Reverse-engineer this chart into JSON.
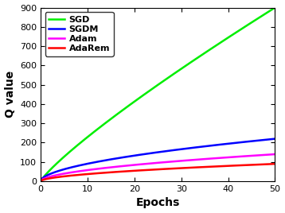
{
  "title": "",
  "xlabel": "Epochs",
  "ylabel": "Q value",
  "xlim": [
    0,
    50
  ],
  "ylim": [
    0,
    900
  ],
  "yticks": [
    0,
    100,
    200,
    300,
    400,
    500,
    600,
    700,
    800,
    900
  ],
  "xticks": [
    0,
    10,
    20,
    30,
    40,
    50
  ],
  "series": [
    {
      "label": "SGD",
      "color": "#00ee00",
      "growth": "sgd"
    },
    {
      "label": "SGDM",
      "color": "#0000ff",
      "growth": "sgdm"
    },
    {
      "label": "Adam",
      "color": "#ff00ff",
      "growth": "adam"
    },
    {
      "label": "AdaRem",
      "color": "#ff0000",
      "growth": "adarem"
    }
  ],
  "legend_loc": "upper left",
  "background_color": "#ffffff",
  "linewidth": 1.8,
  "fontsize_labels": 10,
  "fontsize_ticks": 8,
  "fontsize_legend": 8,
  "legend_fontweight": "bold"
}
